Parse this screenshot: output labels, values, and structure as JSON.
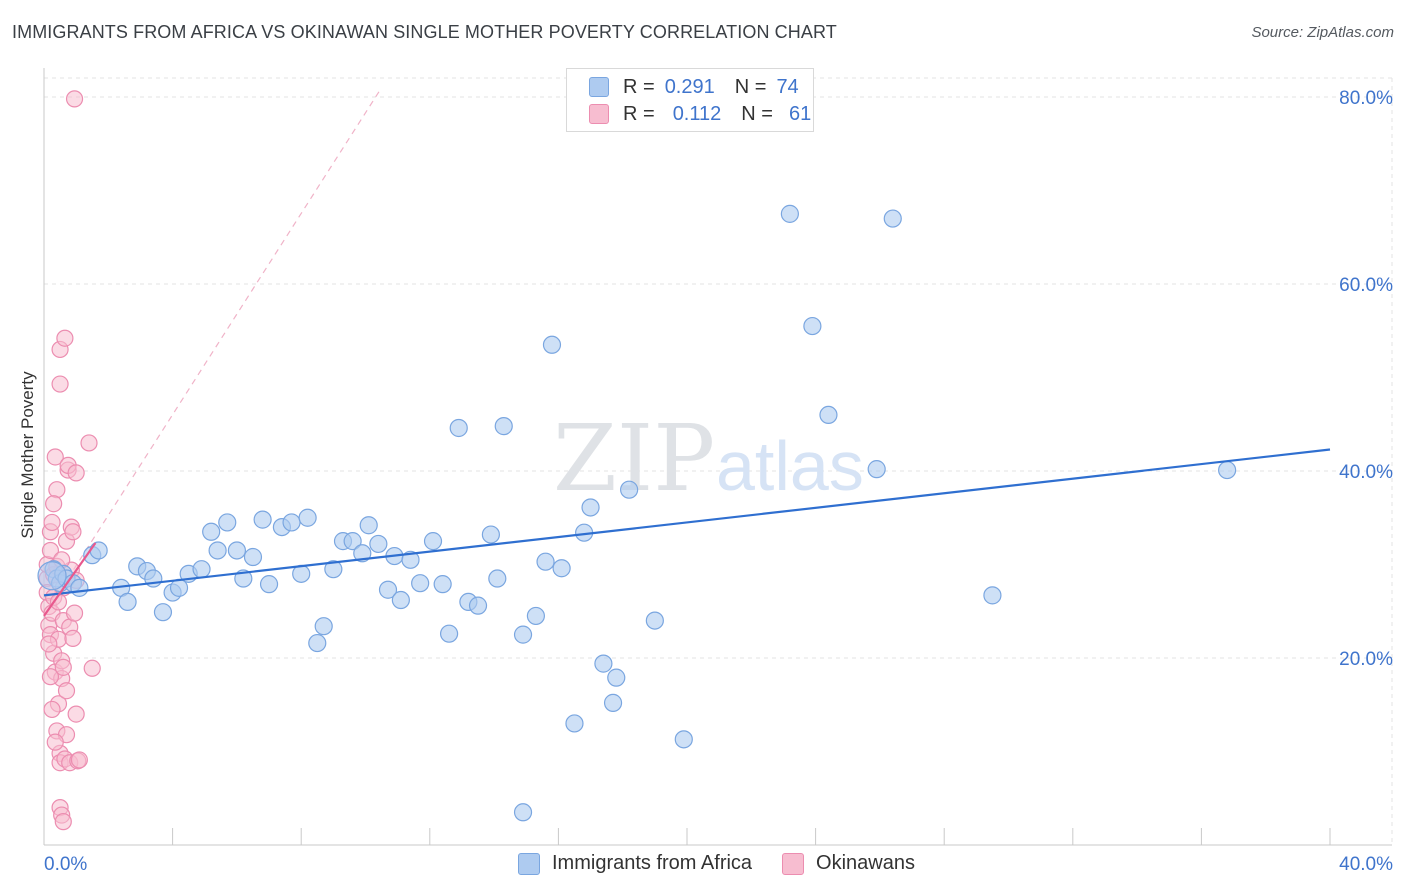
{
  "header": {
    "title": "IMMIGRANTS FROM AFRICA VS OKINAWAN SINGLE MOTHER POVERTY CORRELATION CHART",
    "source": "Source: ZipAtlas.com"
  },
  "watermark": {
    "zip": "ZIP",
    "atlas": "atlas"
  },
  "legend": {
    "rows": [
      {
        "r_label": "R =",
        "r_value": "0.291",
        "n_label": "N =",
        "n_value": "74"
      },
      {
        "r_label": "R =",
        "r_value": "0.112",
        "n_label": "N =",
        "n_value": "61"
      }
    ]
  },
  "colors": {
    "blue_fill": "#aecbf0",
    "blue_stroke": "#7aa6e0",
    "blue_line": "#2f6fd0",
    "pink_fill": "#f7bdd0",
    "pink_stroke": "#ec8db0",
    "pink_line": "#e8588d",
    "tick_text": "#3f74cc",
    "grid": "#e3e3e3"
  },
  "chart_data": {
    "type": "scatter",
    "title": "IMMIGRANTS FROM AFRICA VS OKINAWAN SINGLE MOTHER POVERTY CORRELATION CHART",
    "xlabel": "",
    "ylabel": "Single Mother Poverty",
    "xlim": [
      0,
      40
    ],
    "ylim": [
      0,
      80
    ],
    "x_tick_labels": [
      "0.0%",
      "40.0%"
    ],
    "y_ticks": [
      20,
      40,
      60,
      80
    ],
    "y_tick_labels": [
      "20.0%",
      "40.0%",
      "60.0%",
      "80.0%"
    ],
    "grid": true,
    "series": [
      {
        "name": "Immigrants from Africa",
        "color": "#aecbf0",
        "points": [
          [
            0.3,
            29.5
          ],
          [
            0.4,
            28.5
          ],
          [
            0.5,
            28.0
          ],
          [
            0.6,
            29.0
          ],
          [
            0.7,
            28.5
          ],
          [
            0.9,
            28.0
          ],
          [
            1.1,
            27.5
          ],
          [
            1.5,
            31.0
          ],
          [
            1.7,
            31.5
          ],
          [
            2.4,
            27.5
          ],
          [
            2.6,
            26.0
          ],
          [
            2.9,
            29.8
          ],
          [
            3.2,
            29.3
          ],
          [
            3.4,
            28.5
          ],
          [
            3.7,
            24.9
          ],
          [
            4.0,
            27.0
          ],
          [
            4.2,
            27.5
          ],
          [
            4.5,
            29.0
          ],
          [
            4.9,
            29.5
          ],
          [
            5.2,
            33.5
          ],
          [
            5.4,
            31.5
          ],
          [
            5.7,
            34.5
          ],
          [
            6.0,
            31.5
          ],
          [
            6.2,
            28.5
          ],
          [
            6.5,
            30.8
          ],
          [
            6.8,
            34.8
          ],
          [
            7.0,
            27.9
          ],
          [
            7.4,
            34.0
          ],
          [
            7.7,
            34.5
          ],
          [
            8.0,
            29.0
          ],
          [
            8.2,
            35.0
          ],
          [
            8.5,
            21.6
          ],
          [
            8.7,
            23.4
          ],
          [
            9.0,
            29.5
          ],
          [
            9.3,
            32.5
          ],
          [
            9.6,
            32.5
          ],
          [
            9.9,
            31.2
          ],
          [
            10.1,
            34.2
          ],
          [
            10.4,
            32.2
          ],
          [
            10.7,
            27.3
          ],
          [
            10.9,
            30.9
          ],
          [
            11.1,
            26.2
          ],
          [
            11.4,
            30.5
          ],
          [
            11.7,
            28.0
          ],
          [
            12.1,
            32.5
          ],
          [
            12.4,
            27.9
          ],
          [
            12.6,
            22.6
          ],
          [
            12.9,
            44.6
          ],
          [
            13.2,
            26.0
          ],
          [
            13.5,
            25.6
          ],
          [
            13.9,
            33.2
          ],
          [
            14.1,
            28.5
          ],
          [
            14.3,
            44.8
          ],
          [
            14.9,
            22.5
          ],
          [
            15.3,
            24.5
          ],
          [
            15.6,
            30.3
          ],
          [
            15.8,
            53.5
          ],
          [
            16.1,
            29.6
          ],
          [
            16.5,
            13.0
          ],
          [
            16.8,
            33.4
          ],
          [
            17.0,
            36.1
          ],
          [
            17.4,
            19.4
          ],
          [
            17.7,
            15.2
          ],
          [
            17.8,
            17.9
          ],
          [
            18.2,
            38.0
          ],
          [
            19.0,
            24.0
          ],
          [
            19.9,
            11.3
          ],
          [
            23.2,
            67.5
          ],
          [
            23.9,
            55.5
          ],
          [
            24.4,
            46.0
          ],
          [
            25.9,
            40.2
          ],
          [
            26.4,
            67.0
          ],
          [
            29.5,
            26.7
          ],
          [
            36.8,
            40.1
          ],
          [
            14.9,
            3.5
          ]
        ],
        "trend": {
          "x0": 0,
          "y0": 26.7,
          "x1": 40,
          "y1": 42.3
        }
      },
      {
        "name": "Okinawans",
        "color": "#f7bdd0",
        "points": [
          [
            0.1,
            28.5
          ],
          [
            0.1,
            27.0
          ],
          [
            0.1,
            30.0
          ],
          [
            0.15,
            25.5
          ],
          [
            0.15,
            23.5
          ],
          [
            0.2,
            31.5
          ],
          [
            0.2,
            33.5
          ],
          [
            0.2,
            22.5
          ],
          [
            0.25,
            34.5
          ],
          [
            0.25,
            24.8
          ],
          [
            0.3,
            20.5
          ],
          [
            0.3,
            28.9
          ],
          [
            0.3,
            26.5
          ],
          [
            0.35,
            41.5
          ],
          [
            0.35,
            18.5
          ],
          [
            0.4,
            38.0
          ],
          [
            0.4,
            29.8
          ],
          [
            0.4,
            12.2
          ],
          [
            0.45,
            22.0
          ],
          [
            0.45,
            15.1
          ],
          [
            0.5,
            53.0
          ],
          [
            0.5,
            49.3
          ],
          [
            0.5,
            9.8
          ],
          [
            0.5,
            8.8
          ],
          [
            0.5,
            4.0
          ],
          [
            0.55,
            19.7
          ],
          [
            0.55,
            17.8
          ],
          [
            0.55,
            3.2
          ],
          [
            0.6,
            2.5
          ],
          [
            0.6,
            24.0
          ],
          [
            0.6,
            27.5
          ],
          [
            0.65,
            9.2
          ],
          [
            0.65,
            54.2
          ],
          [
            0.7,
            32.5
          ],
          [
            0.7,
            11.8
          ],
          [
            0.75,
            40.1
          ],
          [
            0.75,
            40.6
          ],
          [
            0.8,
            23.3
          ],
          [
            0.8,
            8.8
          ],
          [
            0.85,
            34.0
          ],
          [
            0.85,
            29.4
          ],
          [
            0.9,
            22.1
          ],
          [
            0.9,
            33.5
          ],
          [
            0.95,
            24.8
          ],
          [
            1.0,
            28.3
          ],
          [
            1.0,
            14.0
          ],
          [
            1.05,
            9.0
          ],
          [
            1.1,
            9.1
          ],
          [
            1.0,
            39.8
          ],
          [
            1.4,
            43.0
          ],
          [
            1.5,
            18.9
          ],
          [
            0.95,
            79.8
          ],
          [
            0.3,
            36.5
          ],
          [
            0.2,
            18.0
          ],
          [
            0.45,
            26.0
          ],
          [
            0.55,
            30.5
          ],
          [
            0.7,
            16.5
          ],
          [
            0.35,
            11.0
          ],
          [
            0.25,
            14.5
          ],
          [
            0.15,
            21.5
          ],
          [
            0.6,
            19.0
          ]
        ],
        "trend": {
          "x0": 0,
          "y0": 24.5,
          "x1": 1.6,
          "y1": 32.3
        },
        "trend_extended": {
          "x0": 0,
          "y0": 24.5,
          "x1": 10.5,
          "y1": 81.0
        }
      }
    ]
  }
}
